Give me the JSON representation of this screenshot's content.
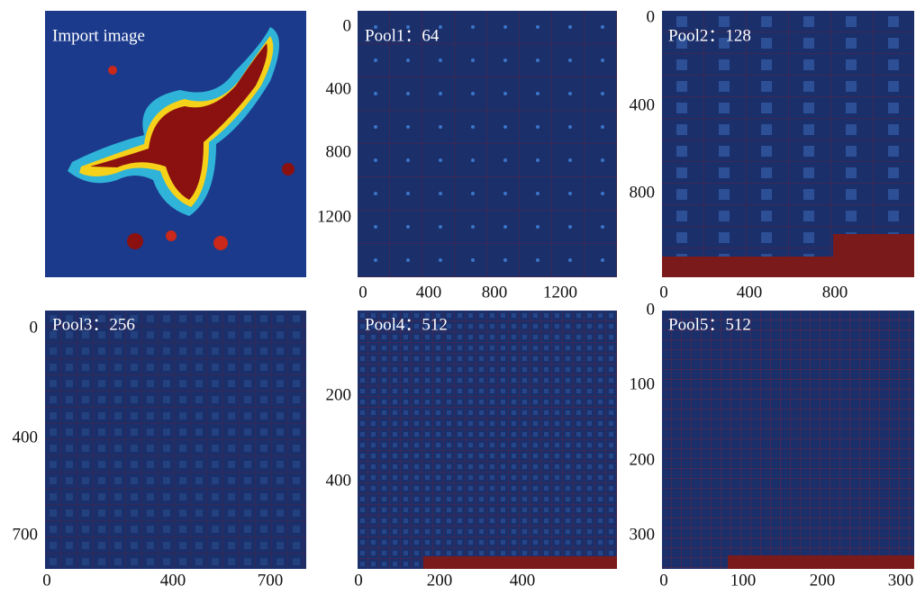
{
  "panels": [
    {
      "label": "Import image",
      "xticks": [],
      "yticks": []
    },
    {
      "label": "Pool1：64",
      "xticks": [
        0,
        400,
        800,
        1200
      ],
      "yticks": [
        0,
        400,
        800,
        1200
      ]
    },
    {
      "label": "Pool2：128",
      "xticks": [
        0,
        400,
        800
      ],
      "yticks": [
        0,
        400,
        800
      ]
    },
    {
      "label": "Pool3：256",
      "xticks": [
        0,
        400,
        700
      ],
      "yticks": [
        0,
        400,
        700
      ]
    },
    {
      "label": "Pool4：512",
      "xticks": [
        0,
        200,
        400
      ],
      "yticks": [
        200,
        400
      ]
    },
    {
      "label": "Pool5：512",
      "xticks": [
        0,
        100,
        200,
        300
      ],
      "yticks": [
        0,
        100,
        200,
        300
      ]
    }
  ]
}
